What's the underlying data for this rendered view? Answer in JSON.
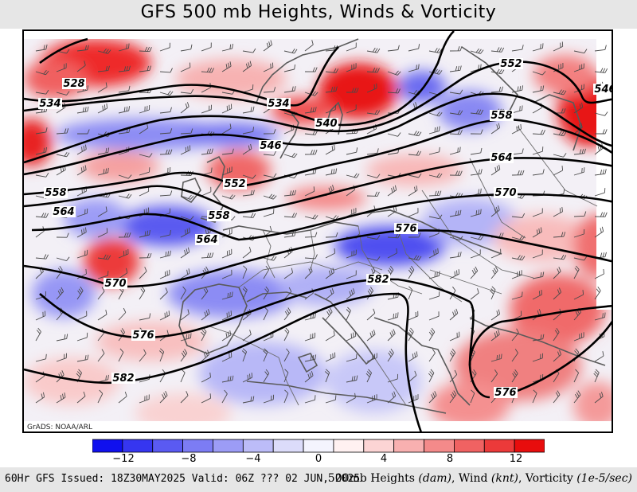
{
  "title": "GFS 500 mb Heights, Winds & Vorticity",
  "credit": "GrADS: NOAA/ARL",
  "footer": {
    "issued": "60Hr GFS Issued: 18Z30MAY2025 Valid: 06Z ??? 02 JUN, 2025",
    "legend_prefix": "500mb Heights ",
    "heights_unit": "(dam)",
    "wind_label": ", Wind ",
    "wind_unit": "(knt)",
    "vort_label": ", Vorticity ",
    "vort_unit": "(1e-5/sec)"
  },
  "colorbar": {
    "ticks": [
      "−12",
      "−8",
      "−4",
      "0",
      "4",
      "8",
      "12"
    ],
    "colors": [
      "#1010ee",
      "#3636f0",
      "#5a5af2",
      "#7c7cf4",
      "#9c9cf6",
      "#bcbcf8",
      "#dcdcfa",
      "#f4f4fe",
      "#fff1f1",
      "#fcd4d4",
      "#f8b0b0",
      "#f48a8a",
      "#f06262",
      "#ec3a3a",
      "#e80d0d"
    ]
  },
  "contour_labels": [
    {
      "text": "528"
    },
    {
      "text": "534"
    },
    {
      "text": "534"
    },
    {
      "text": "540"
    },
    {
      "text": "546"
    },
    {
      "text": "546"
    },
    {
      "text": "552"
    },
    {
      "text": "552"
    },
    {
      "text": "558"
    },
    {
      "text": "558"
    },
    {
      "text": "558"
    },
    {
      "text": "564"
    },
    {
      "text": "564"
    },
    {
      "text": "564"
    },
    {
      "text": "570"
    },
    {
      "text": "570"
    },
    {
      "text": "576"
    },
    {
      "text": "576"
    },
    {
      "text": "576"
    },
    {
      "text": "582"
    },
    {
      "text": "582"
    }
  ],
  "colors": {
    "title_bg": "#e6e6e6",
    "contour": "#000000",
    "coast": "#5a5a5a"
  }
}
